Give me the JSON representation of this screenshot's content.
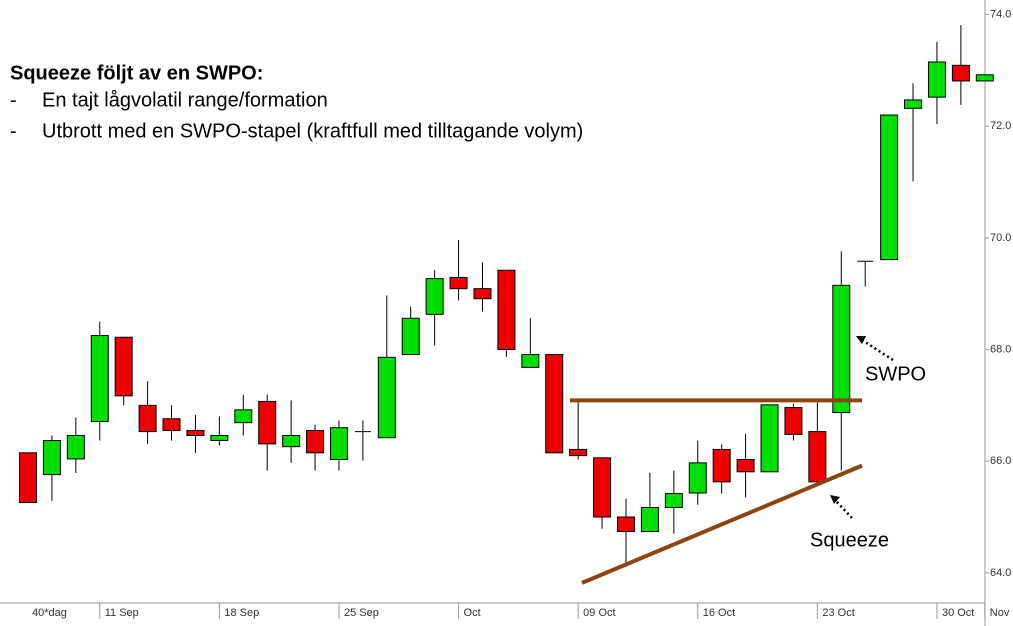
{
  "chart_data": {
    "type": "candlestick",
    "title": "Squeeze följt av en SWPO:",
    "bullet_marker": "-",
    "bullets": [
      "En tajt lågvolatil range/formation",
      "Utbrott med en SWPO-stapel (kraftfull med tilltagande volym)"
    ],
    "annotations": [
      "SWPO",
      "Squeeze"
    ],
    "xlabel": "40*dag",
    "categories": [
      null,
      null,
      null,
      "11 Sep",
      null,
      null,
      null,
      null,
      "18 Sep",
      null,
      null,
      null,
      null,
      "25 Sep",
      null,
      null,
      null,
      null,
      "Oct",
      null,
      null,
      null,
      null,
      "09 Oct",
      null,
      null,
      null,
      null,
      "16 Oct",
      null,
      null,
      null,
      null,
      "23 Oct",
      null,
      null,
      null,
      null,
      "30 Oct",
      null,
      "Nov"
    ],
    "open": [
      66.15,
      65.76,
      66.04,
      66.71,
      68.22,
      67.0,
      66.76,
      66.55,
      66.37,
      66.69,
      67.07,
      66.26,
      66.55,
      66.03,
      66.53,
      66.42,
      67.91,
      68.63,
      69.29,
      69.09,
      69.42,
      67.68,
      67.91,
      66.21,
      66.06,
      65.0,
      64.74,
      65.17,
      65.43,
      66.21,
      66.03,
      65.81,
      66.96,
      66.53,
      66.87,
      69.58,
      69.61,
      72.32,
      72.52,
      73.09,
      72.81
    ],
    "high": [
      66.15,
      66.46,
      66.78,
      68.5,
      68.22,
      67.43,
      67.0,
      66.83,
      66.8,
      67.19,
      67.19,
      67.09,
      66.65,
      66.73,
      66.73,
      68.97,
      68.77,
      69.42,
      69.96,
      69.56,
      69.42,
      68.56,
      67.91,
      67.07,
      66.06,
      65.33,
      65.79,
      65.83,
      66.37,
      66.3,
      66.49,
      67.01,
      67.03,
      67.05,
      69.76,
      69.58,
      72.2,
      72.77,
      73.51,
      73.81,
      72.92
    ],
    "low": [
      65.26,
      65.29,
      65.79,
      66.37,
      67.0,
      66.31,
      66.37,
      66.15,
      66.28,
      66.46,
      65.83,
      65.97,
      65.83,
      65.83,
      66.01,
      66.42,
      67.91,
      68.07,
      68.88,
      68.68,
      67.87,
      67.68,
      66.15,
      66.03,
      64.79,
      64.11,
      64.74,
      64.7,
      65.22,
      65.42,
      65.35,
      65.81,
      66.37,
      65.63,
      65.83,
      69.13,
      69.61,
      71.01,
      72.04,
      72.38,
      72.81
    ],
    "close": [
      65.26,
      66.37,
      66.46,
      68.25,
      67.17,
      66.53,
      66.55,
      66.46,
      66.46,
      66.92,
      66.31,
      66.46,
      66.15,
      66.6,
      66.53,
      67.86,
      68.56,
      69.27,
      69.09,
      68.91,
      68.0,
      67.91,
      66.15,
      66.1,
      65.0,
      64.74,
      65.17,
      65.42,
      65.97,
      65.63,
      65.81,
      67.01,
      66.48,
      65.63,
      69.15,
      69.58,
      72.2,
      72.47,
      73.15,
      72.81,
      72.92
    ],
    "up_color": "#00dd00",
    "down_color": "#ee0000",
    "resistance": 67.09,
    "support": [
      63.82,
      65.92
    ],
    "line_color": "#8b4513",
    "ylim": [
      63.46,
      74.26
    ],
    "yticks": [
      {
        "value": 64,
        "label": "64.0"
      },
      {
        "value": 66,
        "label": "66.0"
      },
      {
        "value": 68,
        "label": "68.0"
      },
      {
        "value": 70,
        "label": "70.0"
      },
      {
        "value": 72,
        "label": "72.0"
      },
      {
        "value": 74,
        "label": "74.0"
      }
    ]
  }
}
